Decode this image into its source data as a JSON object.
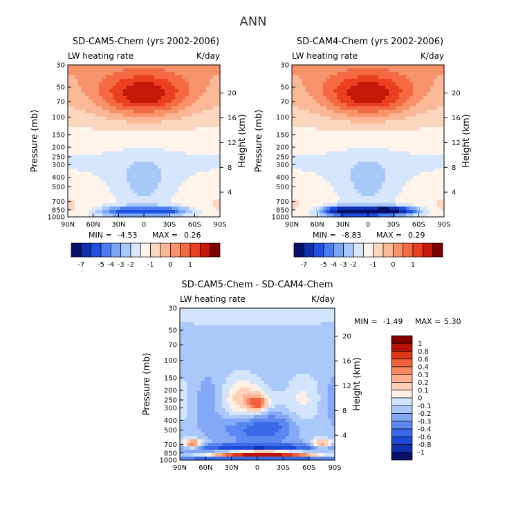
{
  "figure": {
    "title": "ANN"
  },
  "colors": {
    "abs_scale": [
      "#08106a",
      "#1030b0",
      "#2050e0",
      "#4a7ef0",
      "#7aa6f5",
      "#a8c8fa",
      "#d6e6fd",
      "#fff4ec",
      "#fdd6c0",
      "#fbb896",
      "#f8926a",
      "#f46a42",
      "#e84020",
      "#c81808",
      "#800000"
    ],
    "diff_scale": [
      "#08106a",
      "#1030b0",
      "#2048d8",
      "#3a6ae8",
      "#5a88f0",
      "#84a8f5",
      "#abc8fa",
      "#d3e4fd",
      "#fff0e6",
      "#fdd0b8",
      "#fab08c",
      "#f68a60",
      "#f0603a",
      "#dc3818",
      "#b41408",
      "#820000"
    ]
  },
  "chart_data": [
    {
      "type": "heatmap",
      "title": "SD-CAM5-Chem (yrs 2002-2006)",
      "subtitle_left": "LW heating rate",
      "subtitle_right": "K/day",
      "xlabel": "",
      "ylabel": "Pressure (mb)",
      "ylabel_right": "Height (km)",
      "x_ticks": [
        "90N",
        "60N",
        "30N",
        "0",
        "30S",
        "60S",
        "90S"
      ],
      "x_values": [
        90,
        60,
        30,
        0,
        -30,
        -60,
        -90
      ],
      "y_ticks": [
        "30",
        "50",
        "70",
        "100",
        "150",
        "200",
        "250",
        "300",
        "400",
        "500",
        "700",
        "850",
        "1000"
      ],
      "y_values": [
        30,
        50,
        70,
        100,
        150,
        200,
        250,
        300,
        400,
        500,
        700,
        850,
        1000
      ],
      "y_right_ticks": [
        "20",
        "16",
        "12",
        "8",
        "4"
      ],
      "y_right_values": [
        20,
        16,
        12,
        8,
        4
      ],
      "ylim": [
        1000,
        30
      ],
      "min_label": "MIN =",
      "min_value": "-4.53",
      "max_label": "MAX =",
      "max_value": "0.26",
      "colorbar_labels": [
        "-7",
        "-5",
        "-4",
        "-3",
        "-2",
        "-1",
        "0",
        "1"
      ],
      "colorbar_orientation": "horizontal"
    },
    {
      "type": "heatmap",
      "title": "SD-CAM4-Chem (yrs 2002-2006)",
      "subtitle_left": "LW heating rate",
      "subtitle_right": "K/day",
      "xlabel": "",
      "ylabel": "Pressure (mb)",
      "ylabel_right": "Height (km)",
      "x_ticks": [
        "90N",
        "60N",
        "30N",
        "0",
        "30S",
        "60S",
        "90S"
      ],
      "x_values": [
        90,
        60,
        30,
        0,
        -30,
        -60,
        -90
      ],
      "y_ticks": [
        "30",
        "50",
        "70",
        "100",
        "150",
        "200",
        "250",
        "300",
        "400",
        "500",
        "700",
        "850",
        "1000"
      ],
      "y_values": [
        30,
        50,
        70,
        100,
        150,
        200,
        250,
        300,
        400,
        500,
        700,
        850,
        1000
      ],
      "y_right_ticks": [
        "20",
        "16",
        "12",
        "8",
        "4"
      ],
      "y_right_values": [
        20,
        16,
        12,
        8,
        4
      ],
      "ylim": [
        1000,
        30
      ],
      "min_label": "MIN =",
      "min_value": "-8.83",
      "max_label": "MAX =",
      "max_value": "0.29",
      "colorbar_labels": [
        "-7",
        "-5",
        "-4",
        "-3",
        "-2",
        "-1",
        "0",
        "1"
      ],
      "colorbar_orientation": "horizontal"
    },
    {
      "type": "heatmap",
      "title": "SD-CAM5-Chem - SD-CAM4-Chem",
      "subtitle_left": "LW heating rate",
      "subtitle_right": "K/day",
      "xlabel": "",
      "ylabel": "Pressure (mb)",
      "ylabel_right": "Height (km)",
      "x_ticks": [
        "90N",
        "60N",
        "30N",
        "0",
        "30S",
        "60S",
        "90S"
      ],
      "x_values": [
        90,
        60,
        30,
        0,
        -30,
        -60,
        -90
      ],
      "y_ticks": [
        "30",
        "50",
        "70",
        "100",
        "150",
        "200",
        "250",
        "300",
        "400",
        "500",
        "700",
        "850",
        "1000"
      ],
      "y_values": [
        30,
        50,
        70,
        100,
        150,
        200,
        250,
        300,
        400,
        500,
        700,
        850,
        1000
      ],
      "y_right_ticks": [
        "20",
        "16",
        "12",
        "8",
        "4"
      ],
      "y_right_values": [
        20,
        16,
        12,
        8,
        4
      ],
      "ylim": [
        1000,
        30
      ],
      "min_label": "MIN =",
      "min_value": "-1.49",
      "max_label": "MAX =",
      "max_value": "5.30",
      "colorbar_labels": [
        "1",
        "0.8",
        "0.6",
        "0.4",
        "0.3",
        "0.2",
        "0.1",
        "0",
        "-0.1",
        "-0.2",
        "-0.3",
        "-0.4",
        "-0.6",
        "-0.8",
        "-1"
      ],
      "colorbar_orientation": "vertical"
    }
  ]
}
